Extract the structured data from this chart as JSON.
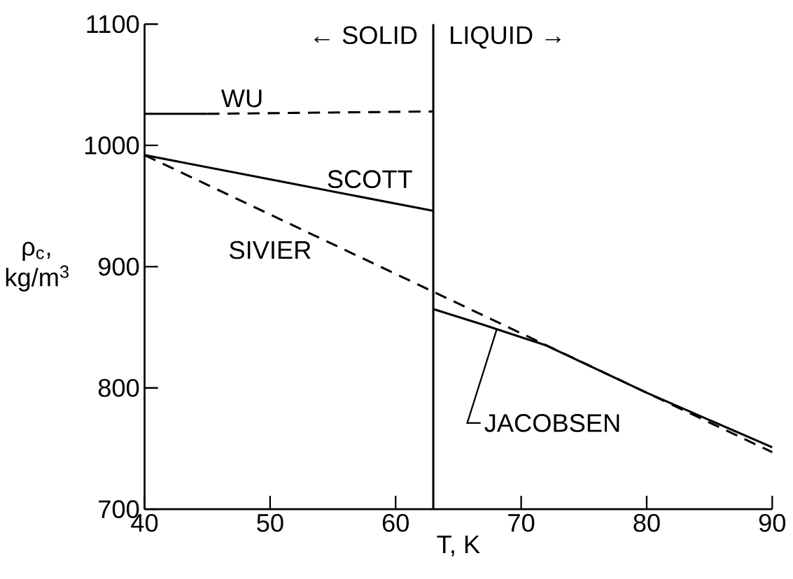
{
  "chart_data": {
    "type": "line",
    "xlabel": "T, K",
    "ylabel": "ρ$_{c}$, kg/m$^{3}$",
    "xlim": [
      40,
      90
    ],
    "ylim": [
      700,
      1100
    ],
    "xticks": [
      40,
      50,
      60,
      70,
      80,
      90
    ],
    "yticks": [
      700,
      800,
      900,
      1000,
      1100
    ],
    "grid": false,
    "marker": "none",
    "series": [
      {
        "color": "#000000",
        "x": [
          40,
          45
        ],
        "values": [
          1026,
          1026
        ],
        "line_style": "solid"
      },
      {
        "name": "WU",
        "color": "#000000",
        "x": [
          45,
          63
        ],
        "values": [
          1026,
          1028
        ],
        "line_style": "dashed"
      },
      {
        "name": "SCOTT",
        "color": "#000000",
        "x": [
          40,
          63
        ],
        "values": [
          992,
          946
        ],
        "line_style": "solid"
      },
      {
        "name": "SIVIER",
        "color": "#000000",
        "x": [
          40,
          90
        ],
        "values": [
          992,
          747
        ],
        "line_style": "dashed"
      },
      {
        "name": "JACOBSEN",
        "color": "#000000",
        "x": [
          63,
          67,
          72,
          80,
          90
        ],
        "values": [
          865,
          852,
          835,
          796,
          751
        ],
        "line_style": "solid"
      }
    ],
    "ref_lines": [
      {
        "axis": "x",
        "value": 63,
        "color": "#000000"
      }
    ],
    "annotations": [
      "← SOLID",
      "LIQUID →"
    ]
  }
}
